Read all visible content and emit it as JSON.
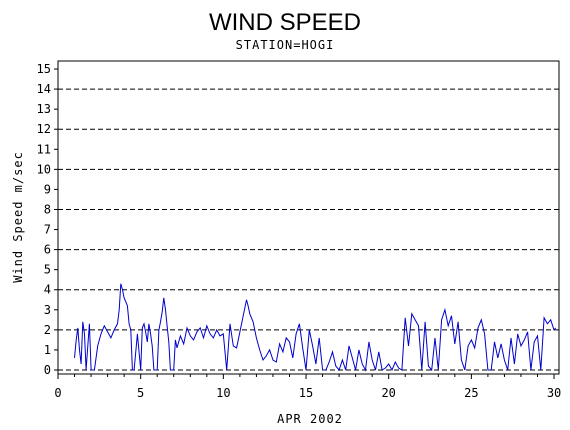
{
  "chart_data": {
    "type": "line",
    "title": "WIND SPEED",
    "subtitle": "STATION=HOGI",
    "xlabel": "APR 2002",
    "ylabel": "Wind Speed m/sec",
    "xlim": [
      0,
      30.3
    ],
    "ylim": [
      -0.2,
      15.4
    ],
    "xticks": [
      0,
      5,
      10,
      15,
      20,
      25,
      30
    ],
    "yticks": [
      0,
      1,
      2,
      3,
      4,
      5,
      6,
      7,
      8,
      9,
      10,
      11,
      12,
      13,
      14,
      15
    ],
    "reference_lines": [
      0,
      2,
      4,
      6,
      8,
      10,
      12,
      14
    ],
    "line_color": "#0000cc",
    "grid": "dashed horizontal at even values",
    "series": [
      {
        "x": [
          1.0,
          1.1,
          1.2,
          1.3,
          1.4,
          1.5,
          1.6,
          1.7,
          1.8,
          1.9,
          2.0,
          2.2,
          2.4,
          2.6,
          2.8,
          3.0,
          3.2,
          3.4,
          3.6,
          3.7,
          3.8,
          3.9,
          4.0,
          4.1,
          4.2,
          4.3,
          4.4,
          4.5,
          4.6,
          4.8,
          5.0,
          5.1,
          5.2,
          5.3,
          5.4,
          5.5,
          5.6,
          5.7,
          5.8,
          5.9,
          6.0,
          6.1,
          6.2,
          6.3,
          6.4,
          6.5,
          6.6,
          6.7,
          6.8,
          6.9,
          7.0,
          7.1,
          7.2,
          7.4,
          7.6,
          7.8,
          8.0,
          8.2,
          8.4,
          8.6,
          8.8,
          9.0,
          9.2,
          9.4,
          9.6,
          9.8,
          10.0,
          10.2,
          10.4,
          10.6,
          10.8,
          11.0,
          11.2,
          11.4,
          11.5,
          11.6,
          11.8,
          12.0,
          12.2,
          12.4,
          12.6,
          12.8,
          13.0,
          13.2,
          13.4,
          13.6,
          13.8,
          14.0,
          14.2,
          14.4,
          14.6,
          14.8,
          15.0,
          15.2,
          15.4,
          15.6,
          15.8,
          16.0,
          16.2,
          16.4,
          16.6,
          16.8,
          17.0,
          17.2,
          17.4,
          17.6,
          17.8,
          18.0,
          18.2,
          18.4,
          18.6,
          18.8,
          19.0,
          19.2,
          19.4,
          19.6,
          19.8,
          20.0,
          20.2,
          20.4,
          20.6,
          20.8,
          21.0,
          21.2,
          21.4,
          21.6,
          21.8,
          22.0,
          22.2,
          22.4,
          22.6,
          22.8,
          23.0,
          23.2,
          23.4,
          23.6,
          23.8,
          24.0,
          24.2,
          24.4,
          24.6,
          24.8,
          25.0,
          25.2,
          25.4,
          25.6,
          25.8,
          26.0,
          26.2,
          26.4,
          26.6,
          26.8,
          27.0,
          27.2,
          27.4,
          27.6,
          27.8,
          28.0,
          28.2,
          28.4,
          28.6,
          28.8,
          29.0,
          29.2,
          29.4,
          29.6,
          29.8,
          30.0,
          30.1
        ],
        "values": [
          0.6,
          1.5,
          2.1,
          1.0,
          0.3,
          2.4,
          1.8,
          0.0,
          1.2,
          2.3,
          0.0,
          0.0,
          1.2,
          1.8,
          2.2,
          1.9,
          1.6,
          2.0,
          2.3,
          3.0,
          4.3,
          4.0,
          3.6,
          3.4,
          3.2,
          2.3,
          2.0,
          0.0,
          0.0,
          1.8,
          0.0,
          2.1,
          2.3,
          1.9,
          1.4,
          2.3,
          1.8,
          1.2,
          0.0,
          0.0,
          0.0,
          2.0,
          2.4,
          2.9,
          3.6,
          3.0,
          2.2,
          1.4,
          0.0,
          0.0,
          0.0,
          1.5,
          1.1,
          1.7,
          1.3,
          2.1,
          1.7,
          1.5,
          1.9,
          2.1,
          1.6,
          2.2,
          1.8,
          1.6,
          2.0,
          1.7,
          1.8,
          0.0,
          2.3,
          1.2,
          1.1,
          1.9,
          2.7,
          3.5,
          3.2,
          2.8,
          2.4,
          1.6,
          1.0,
          0.5,
          0.7,
          1.0,
          0.5,
          0.4,
          1.3,
          0.9,
          1.6,
          1.4,
          0.6,
          1.8,
          2.3,
          1.1,
          0.0,
          2.0,
          1.2,
          0.3,
          1.6,
          0.0,
          0.0,
          0.4,
          0.9,
          0.2,
          0.0,
          0.5,
          0.0,
          1.2,
          0.6,
          0.0,
          1.0,
          0.3,
          0.0,
          1.4,
          0.5,
          0.0,
          0.9,
          0.0,
          0.1,
          0.3,
          0.0,
          0.4,
          0.1,
          0.0,
          2.6,
          1.2,
          2.8,
          2.5,
          2.2,
          0.0,
          2.4,
          0.2,
          0.0,
          1.6,
          0.0,
          2.5,
          3.0,
          2.2,
          2.7,
          1.3,
          2.4,
          0.5,
          0.0,
          1.2,
          1.5,
          1.1,
          2.1,
          2.5,
          1.8,
          0.0,
          0.0,
          1.4,
          0.6,
          1.3,
          0.5,
          0.0,
          1.6,
          0.3,
          1.8,
          1.2,
          1.5,
          1.9,
          0.0,
          1.4,
          1.7,
          0.0,
          2.6,
          2.3,
          2.5,
          2.0,
          2.1
        ]
      }
    ]
  }
}
